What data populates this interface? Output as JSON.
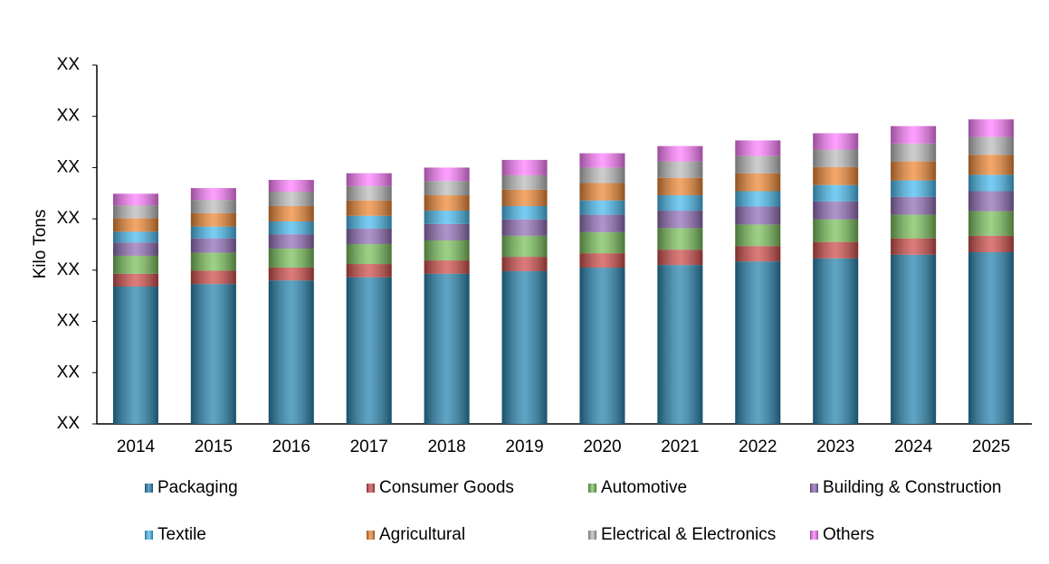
{
  "chart_data": {
    "type": "stacked-bar",
    "y_label": "Kilo Tons",
    "categories": [
      "2014",
      "2015",
      "2016",
      "2017",
      "2018",
      "2019",
      "2020",
      "2021",
      "2022",
      "2023",
      "2024",
      "2025"
    ],
    "series": [
      {
        "name": "Packaging",
        "color": "#2a86b0",
        "values": [
          2.68,
          2.73,
          2.8,
          2.86,
          2.93,
          2.98,
          3.05,
          3.1,
          3.17,
          3.23,
          3.3,
          3.35
        ]
      },
      {
        "name": "Consumer Goods",
        "color": "#d0504d",
        "values": [
          0.25,
          0.26,
          0.25,
          0.26,
          0.26,
          0.28,
          0.28,
          0.3,
          0.3,
          0.32,
          0.32,
          0.32
        ]
      },
      {
        "name": "Automotive",
        "color": "#7cc25e",
        "values": [
          0.35,
          0.35,
          0.37,
          0.39,
          0.39,
          0.41,
          0.41,
          0.42,
          0.42,
          0.44,
          0.46,
          0.48
        ]
      },
      {
        "name": "Building & Construction",
        "color": "#9370b8",
        "values": [
          0.26,
          0.28,
          0.28,
          0.3,
          0.32,
          0.32,
          0.34,
          0.34,
          0.35,
          0.35,
          0.35,
          0.39
        ]
      },
      {
        "name": "Textile",
        "color": "#4cbcf0",
        "values": [
          0.21,
          0.23,
          0.25,
          0.25,
          0.26,
          0.26,
          0.28,
          0.3,
          0.3,
          0.32,
          0.32,
          0.32
        ]
      },
      {
        "name": "Agricultural",
        "color": "#f08a38",
        "values": [
          0.26,
          0.26,
          0.3,
          0.3,
          0.3,
          0.32,
          0.34,
          0.34,
          0.35,
          0.35,
          0.37,
          0.39
        ]
      },
      {
        "name": "Electrical & Electronics",
        "color": "#bdbdbd",
        "values": [
          0.25,
          0.26,
          0.28,
          0.28,
          0.28,
          0.28,
          0.3,
          0.32,
          0.34,
          0.34,
          0.35,
          0.35
        ]
      },
      {
        "name": "Others",
        "color": "#ff80ff",
        "values": [
          0.23,
          0.23,
          0.23,
          0.25,
          0.26,
          0.3,
          0.28,
          0.3,
          0.3,
          0.32,
          0.34,
          0.34
        ]
      }
    ],
    "ylim": [
      0,
      7
    ],
    "yticks": [
      {
        "value": 0,
        "label": "XX"
      },
      {
        "value": 1,
        "label": "XX"
      },
      {
        "value": 2,
        "label": "XX"
      },
      {
        "value": 3,
        "label": "XX"
      },
      {
        "value": 4,
        "label": "XX"
      },
      {
        "value": 5,
        "label": "XX"
      },
      {
        "value": 6,
        "label": "XX"
      },
      {
        "value": 7,
        "label": "XX"
      }
    ],
    "grid": false,
    "legend": "bottom"
  }
}
